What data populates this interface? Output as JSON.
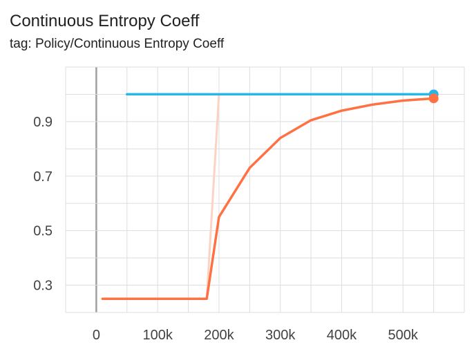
{
  "header": {
    "title": "Continuous Entropy Coeff",
    "tag": "tag: Policy/Continuous Entropy Coeff"
  },
  "chart_data": {
    "type": "line",
    "title": "Continuous Entropy Coeff",
    "subtitle": "tag: Policy/Continuous Entropy Coeff",
    "xlabel": "",
    "ylabel": "",
    "xlim": [
      -50000,
      600000
    ],
    "ylim": [
      0.2,
      1.1
    ],
    "grid": true,
    "x_ticks": [
      0,
      100000,
      200000,
      300000,
      400000,
      500000
    ],
    "x_tick_labels": [
      "0",
      "100k",
      "200k",
      "300k",
      "400k",
      "500k"
    ],
    "y_ticks": [
      0.3,
      0.5,
      0.7,
      0.9
    ],
    "y_tick_labels": [
      "0.3",
      "0.5",
      "0.7",
      "0.9"
    ],
    "series": [
      {
        "color": "#29b6e6",
        "points": [
          [
            50000,
            1.0
          ],
          [
            550000,
            1.0
          ]
        ]
      },
      {
        "color": "#ff7043",
        "points": [
          [
            10000,
            0.25
          ],
          [
            180000,
            0.25
          ],
          [
            200000,
            0.55
          ],
          [
            250000,
            0.73
          ],
          [
            300000,
            0.84
          ],
          [
            350000,
            0.905
          ],
          [
            400000,
            0.94
          ],
          [
            450000,
            0.962
          ],
          [
            500000,
            0.977
          ],
          [
            550000,
            0.985
          ]
        ]
      },
      {
        "color": "#fbd3c4",
        "points": [
          [
            180000,
            0.25
          ],
          [
            200000,
            1.0
          ]
        ]
      }
    ]
  }
}
